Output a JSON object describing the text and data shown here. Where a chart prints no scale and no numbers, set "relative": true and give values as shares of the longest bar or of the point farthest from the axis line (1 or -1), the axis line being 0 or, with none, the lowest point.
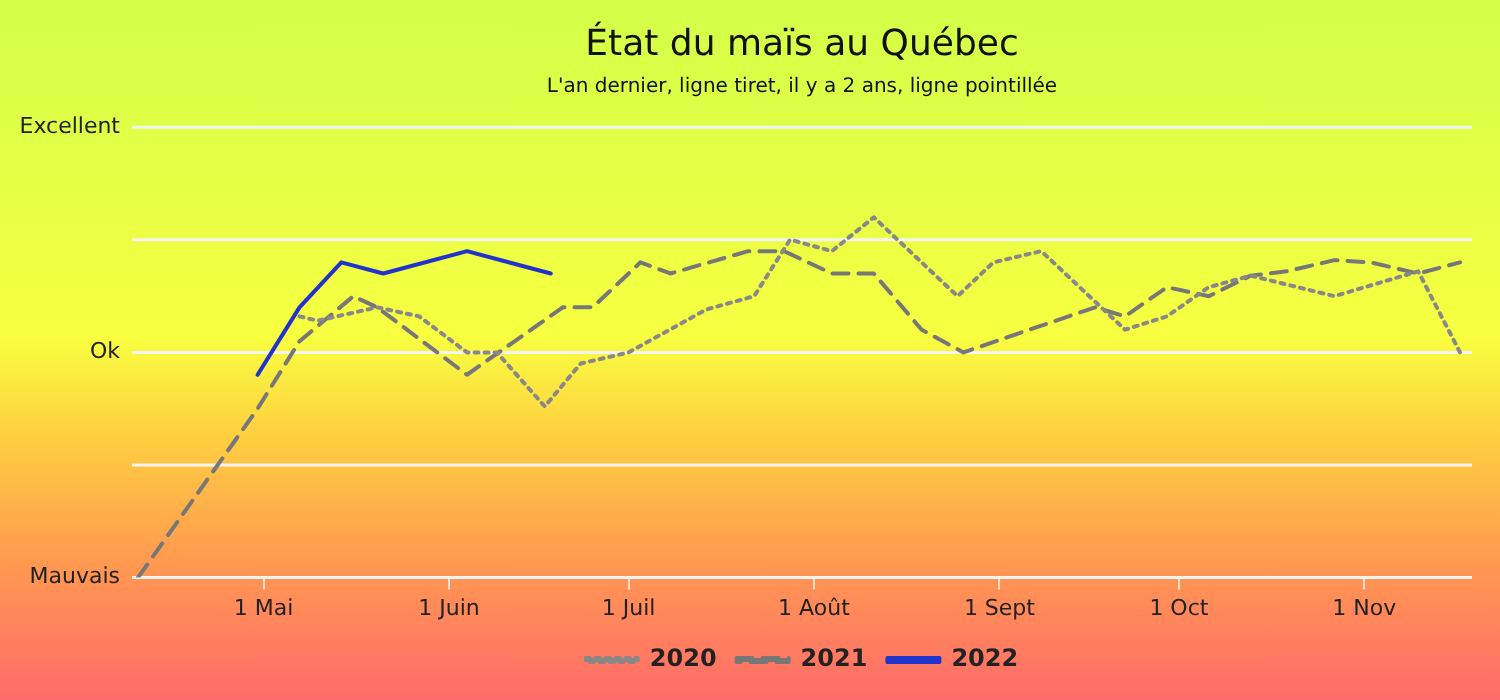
{
  "chart_data": {
    "type": "line",
    "title": "État du maïs au Québec",
    "subtitle": "L'an dernier, ligne tiret, il y a 2 ans, ligne pointillée",
    "relative": true,
    "xlim": [
      "--04-09",
      "--11-19"
    ],
    "xticks": [
      {
        "value": "--05-01",
        "label": "1 Mai"
      },
      {
        "value": "--06-01",
        "label": "1 Juin"
      },
      {
        "value": "--07-01",
        "label": "1 Juil"
      },
      {
        "value": "--08-01",
        "label": "1 Août"
      },
      {
        "value": "--09-01",
        "label": "1 Sept"
      },
      {
        "value": "--10-01",
        "label": "1 Oct"
      },
      {
        "value": "--11-01",
        "label": "1 Nov"
      }
    ],
    "ref_lines": [
      {
        "axis": "y",
        "value": 1.25,
        "label": "Excellent",
        "color": "#f4f4f4"
      },
      {
        "axis": "y",
        "value": 0.9375,
        "label": null,
        "color": "#f4f4f4"
      },
      {
        "axis": "y",
        "value": 0.625,
        "label": "Ok",
        "color": "#f4f4f4"
      },
      {
        "axis": "y",
        "value": 0.3125,
        "label": null,
        "color": "#f4f4f4"
      },
      {
        "axis": "y",
        "value": 0,
        "label": "Mauvais",
        "color": "#f4f4f4"
      }
    ],
    "legend": "bottom",
    "marker": "none",
    "series": [
      {
        "name": "2020",
        "color": "#888888",
        "line_style": "dotted",
        "x": [
          "--05-07",
          "--05-10",
          "--05-20",
          "--05-27",
          "--06-04",
          "--06-09",
          "--06-17",
          "--06-23",
          "--07-01",
          "--07-14",
          "--07-22",
          "--07-28",
          "--08-04",
          "--08-11",
          "--08-25",
          "--08-31",
          "--09-08",
          "--09-22",
          "--09-29",
          "--10-06",
          "--10-13",
          "--10-27",
          "--11-10",
          "--11-17"
        ],
        "values": [
          0.725,
          0.713,
          0.75,
          0.725,
          0.625,
          0.625,
          0.475,
          0.594,
          0.625,
          0.744,
          0.781,
          0.938,
          0.906,
          1,
          0.781,
          0.875,
          0.906,
          0.688,
          0.725,
          0.806,
          0.838,
          0.781,
          0.85,
          0.625
        ]
      },
      {
        "name": "2021",
        "color": "#777777",
        "line_style": "dashed",
        "x": [
          "--04-10",
          "--04-30",
          "--05-07",
          "--05-16",
          "--05-20",
          "--06-04",
          "--06-20",
          "--06-25",
          "--07-03",
          "--07-08",
          "--07-21",
          "--07-27",
          "--08-04",
          "--08-11",
          "--08-19",
          "--08-26",
          "--09-06",
          "--09-17",
          "--09-22",
          "--09-29",
          "--10-06",
          "--10-13",
          "--10-19",
          "--10-27",
          "--11-02",
          "--11-10",
          "--11-17"
        ],
        "values": [
          0,
          0.469,
          0.656,
          0.781,
          0.75,
          0.563,
          0.75,
          0.75,
          0.875,
          0.844,
          0.906,
          0.906,
          0.844,
          0.844,
          0.688,
          0.625,
          0.688,
          0.75,
          0.725,
          0.806,
          0.781,
          0.838,
          0.85,
          0.881,
          0.875,
          0.844,
          0.875
        ]
      },
      {
        "name": "2022",
        "color": "#2233cc",
        "line_style": "solid",
        "x": [
          "--04-30",
          "--05-07",
          "--05-14",
          "--05-21",
          "--06-04",
          "--06-18"
        ],
        "values": [
          0.563,
          0.75,
          0.875,
          0.844,
          0.906,
          0.844
        ]
      }
    ]
  }
}
